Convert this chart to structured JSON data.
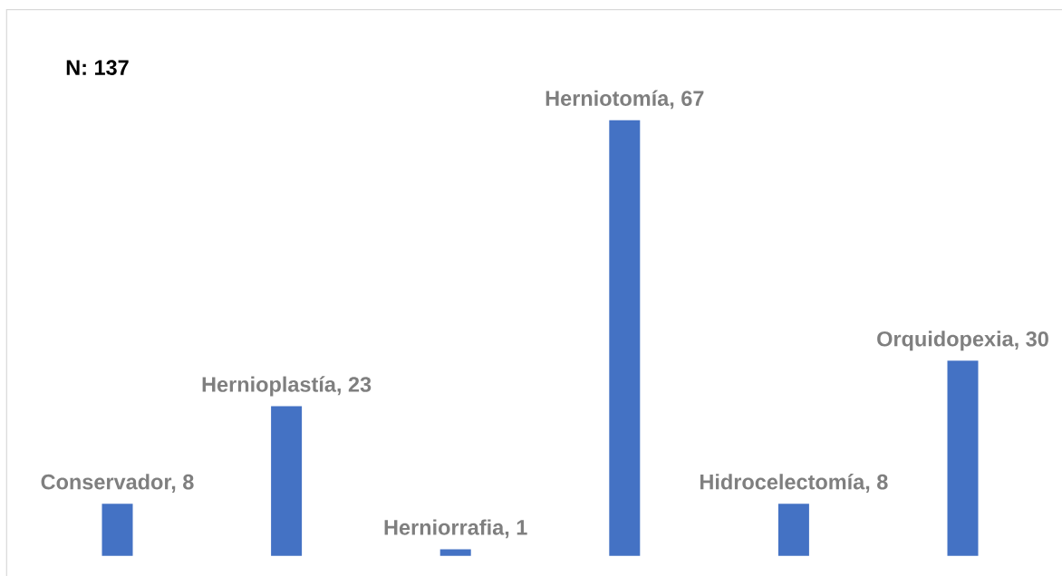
{
  "chart_data": {
    "type": "bar",
    "categories": [
      null,
      null,
      null,
      null,
      null,
      null
    ],
    "values": [
      8,
      23,
      1,
      67,
      8,
      30
    ],
    "color": "#4472c4",
    "value_labels": [
      "Conservador, 8",
      "Hernioplastía, 23",
      "Herniorrafia, 1",
      "Herniotomía, 67",
      "Hidrocelectomía, 8",
      "Orquidopexia, 30"
    ],
    "annotations": [
      "N: 137"
    ]
  }
}
